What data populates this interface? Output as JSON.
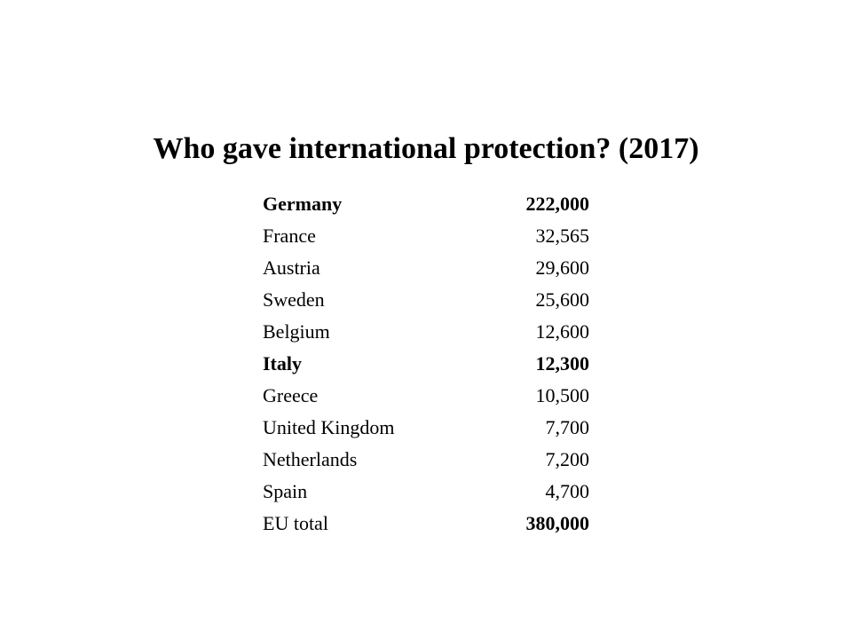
{
  "title": "Who gave international protection? (2017)",
  "rows": [
    {
      "country": "Germany",
      "value": "222,000",
      "bold_country": true,
      "bold_value": true
    },
    {
      "country": "France",
      "value": "32,565",
      "bold_country": false,
      "bold_value": false
    },
    {
      "country": "Austria",
      "value": "29,600",
      "bold_country": false,
      "bold_value": false
    },
    {
      "country": "Sweden",
      "value": "25,600",
      "bold_country": false,
      "bold_value": false
    },
    {
      "country": "Belgium",
      "value": "12,600",
      "bold_country": false,
      "bold_value": false
    },
    {
      "country": "Italy",
      "value": "12,300",
      "bold_country": true,
      "bold_value": true
    },
    {
      "country": "Greece",
      "value": "10,500",
      "bold_country": false,
      "bold_value": false
    },
    {
      "country": "United Kingdom",
      "value": "7,700",
      "bold_country": false,
      "bold_value": false
    },
    {
      "country": "Netherlands",
      "value": "7,200",
      "bold_country": false,
      "bold_value": false
    },
    {
      "country": "Spain",
      "value": "4,700",
      "bold_country": false,
      "bold_value": false
    },
    {
      "country": "EU total",
      "value": "380,000",
      "bold_country": false,
      "bold_value": true
    }
  ]
}
